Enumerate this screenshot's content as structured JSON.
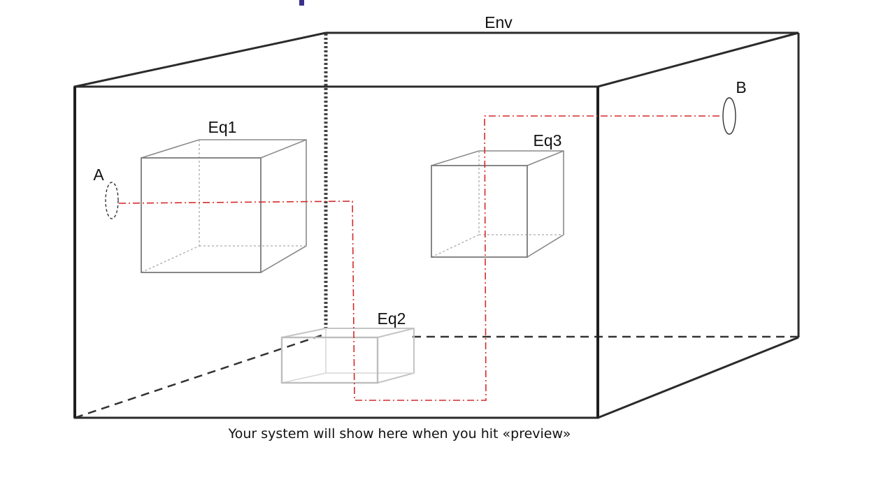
{
  "labels": {
    "environment": "Env",
    "equipment_1": "Eq1",
    "equipment_2": "Eq2",
    "equipment_3": "Eq3",
    "port_a": "A",
    "port_b": "B"
  },
  "caption": "Your system will show here when you hit «preview»",
  "colors": {
    "outline": "#2b2b2b",
    "box_edge": "#8a8a8a",
    "path": "#d42a2a",
    "accent_mark": "#3a2f8c"
  }
}
